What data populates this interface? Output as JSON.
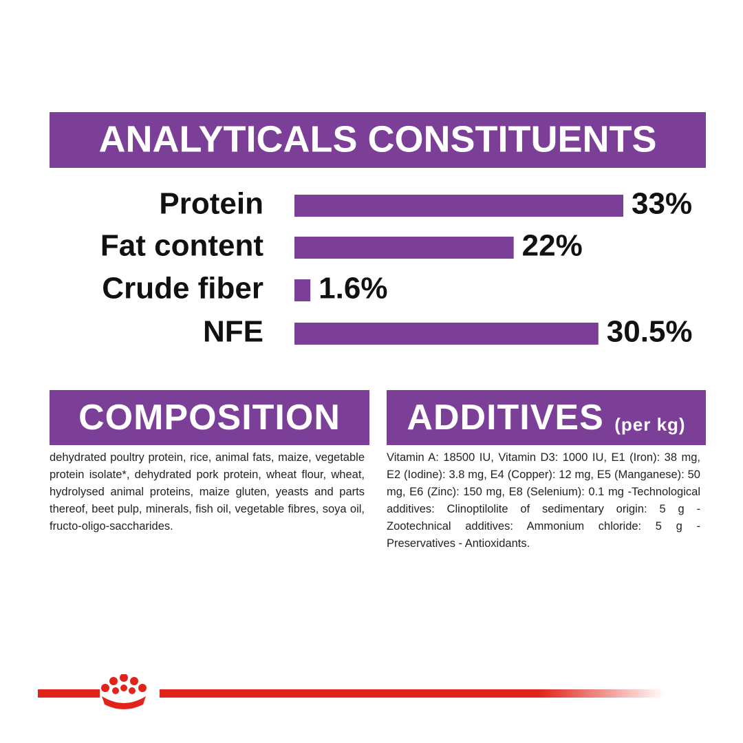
{
  "chart_data": {
    "type": "bar",
    "orientation": "horizontal",
    "title": "ANALYTICALS CONSTITUENTS",
    "categories": [
      "Protein",
      "Fat content",
      "Crude fiber",
      "NFE"
    ],
    "values": [
      33,
      22,
      1.6,
      30.5
    ],
    "value_labels": [
      "33%",
      "22%",
      "1.6%",
      "30.5%"
    ],
    "color": "#7b3f98"
  },
  "composition": {
    "title": "COMPOSITION",
    "text": "dehydrated poultry protein, rice, animal fats, maize, vegetable protein isolate*, dehydrated pork protein, wheat flour, wheat, hydrolysed animal proteins, maize gluten, yeasts and parts thereof, beet pulp, minerals, fish oil, vegetable fibres, soya oil, fructo-oligo-saccharides."
  },
  "additives": {
    "title": "ADDITIVES",
    "subtitle": "(per kg)",
    "text": "Vitamin A: 18500 IU, Vitamin D3: 1000 IU, E1 (Iron): 38 mg, E2 (Iodine): 3.8 mg, E4 (Copper): 12 mg, E5 (Manganese): 50 mg, E6 (Zinc): 150 mg, E8 (Selenium): 0.1 mg -Technological additives: Clinoptilolite of sedimentary origin: 5 g - Zootechnical additives: Ammonium chloride: 5 g - Preservatives - Antioxidants."
  }
}
